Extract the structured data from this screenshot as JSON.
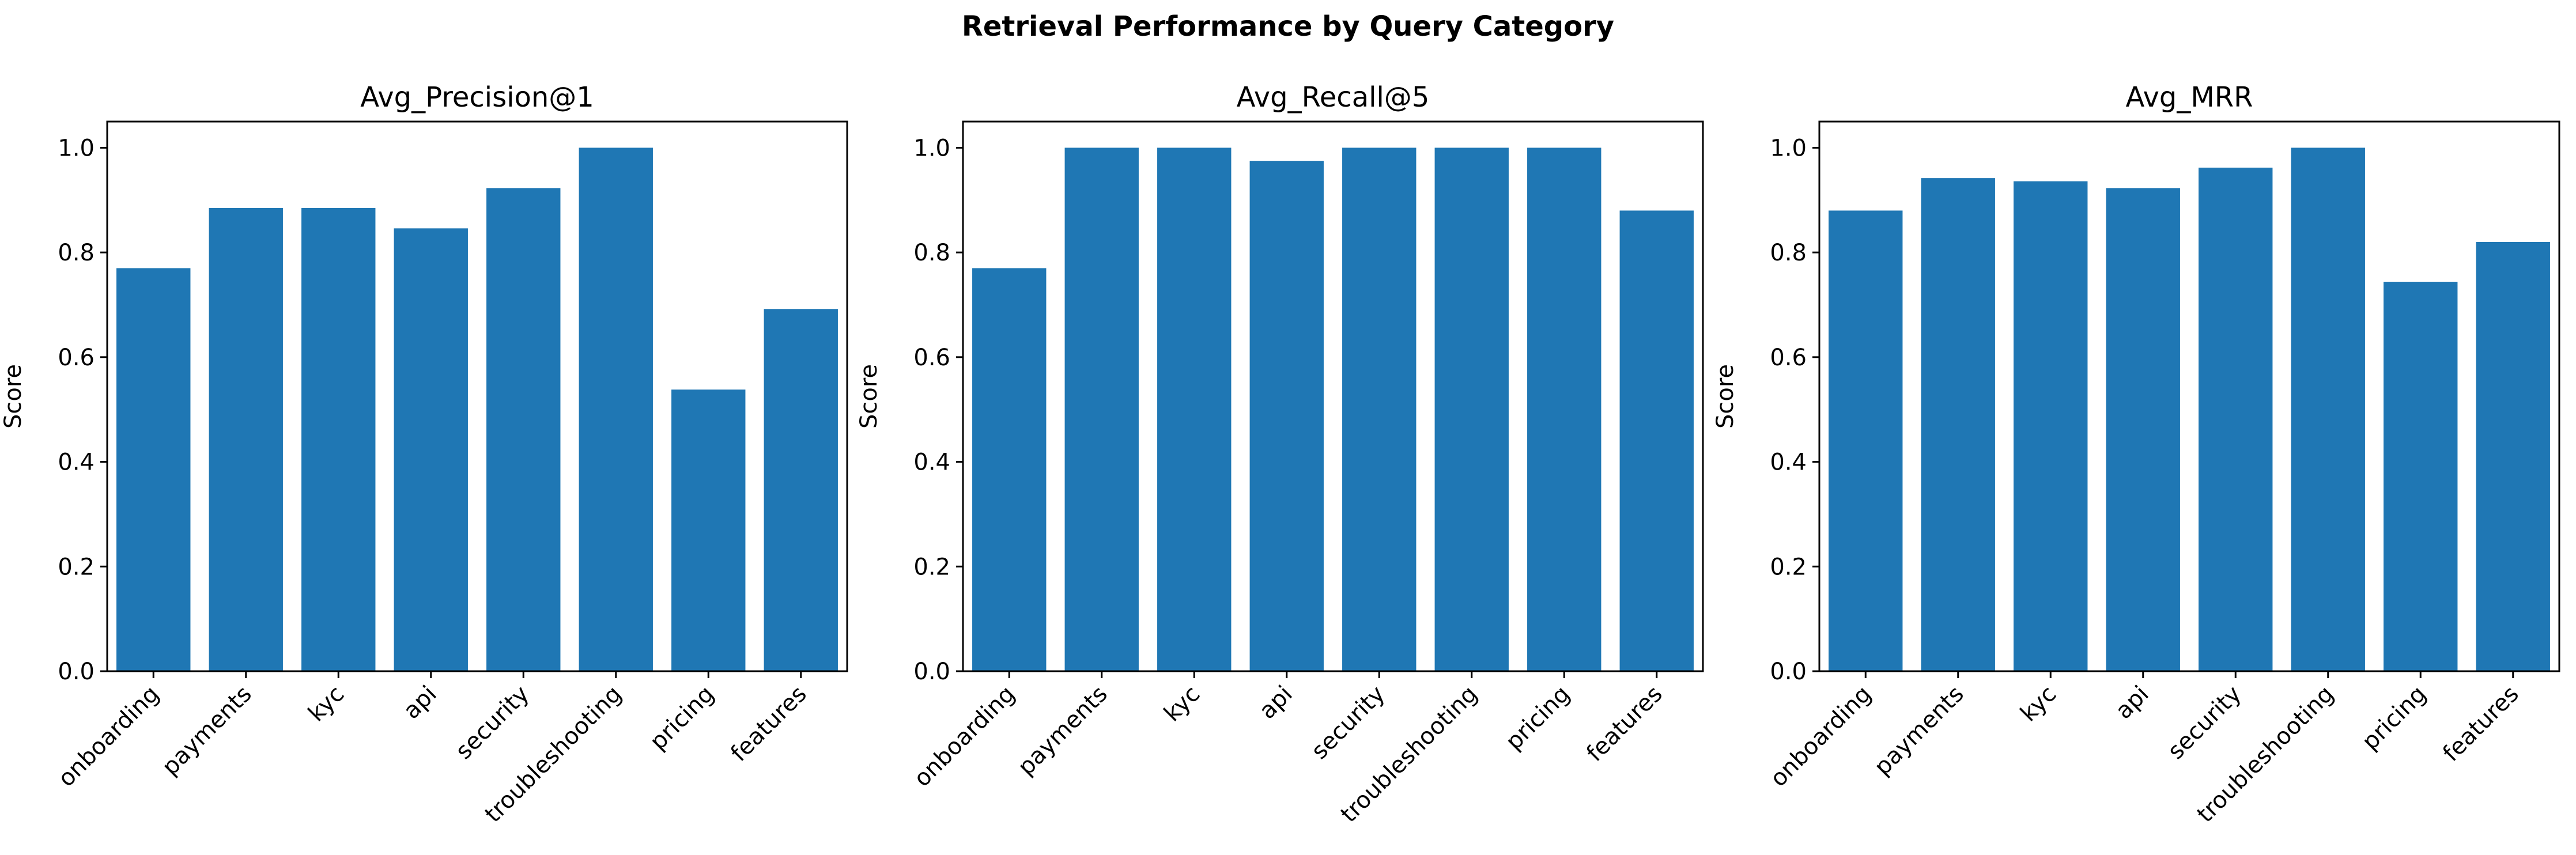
{
  "figure": {
    "title": "Retrieval Performance by Query Category"
  },
  "chart_data": [
    {
      "type": "bar",
      "title": "Avg_Precision@1",
      "xlabel": "",
      "ylabel": "Score",
      "ylim": [
        0,
        1.05
      ],
      "yticks": [
        "0.0",
        "0.2",
        "0.4",
        "0.6",
        "0.8",
        "1.0"
      ],
      "categories": [
        "onboarding",
        "payments",
        "kyc",
        "api",
        "security",
        "troubleshooting",
        "pricing",
        "features"
      ],
      "values": [
        0.77,
        0.885,
        0.885,
        0.846,
        0.923,
        1.0,
        0.538,
        0.692
      ],
      "bar_color": "#1f77b4",
      "grid": false
    },
    {
      "type": "bar",
      "title": "Avg_Recall@5",
      "xlabel": "",
      "ylabel": "Score",
      "ylim": [
        0,
        1.05
      ],
      "yticks": [
        "0.0",
        "0.2",
        "0.4",
        "0.6",
        "0.8",
        "1.0"
      ],
      "categories": [
        "onboarding",
        "payments",
        "kyc",
        "api",
        "security",
        "troubleshooting",
        "pricing",
        "features"
      ],
      "values": [
        0.77,
        1.0,
        1.0,
        0.975,
        1.0,
        1.0,
        1.0,
        0.88
      ],
      "bar_color": "#1f77b4",
      "grid": false
    },
    {
      "type": "bar",
      "title": "Avg_MRR",
      "xlabel": "",
      "ylabel": "Score",
      "ylim": [
        0,
        1.05
      ],
      "yticks": [
        "0.0",
        "0.2",
        "0.4",
        "0.6",
        "0.8",
        "1.0"
      ],
      "categories": [
        "onboarding",
        "payments",
        "kyc",
        "api",
        "security",
        "troubleshooting",
        "pricing",
        "features"
      ],
      "values": [
        0.88,
        0.942,
        0.936,
        0.923,
        0.962,
        1.0,
        0.744,
        0.82
      ],
      "bar_color": "#1f77b4",
      "grid": false
    }
  ]
}
